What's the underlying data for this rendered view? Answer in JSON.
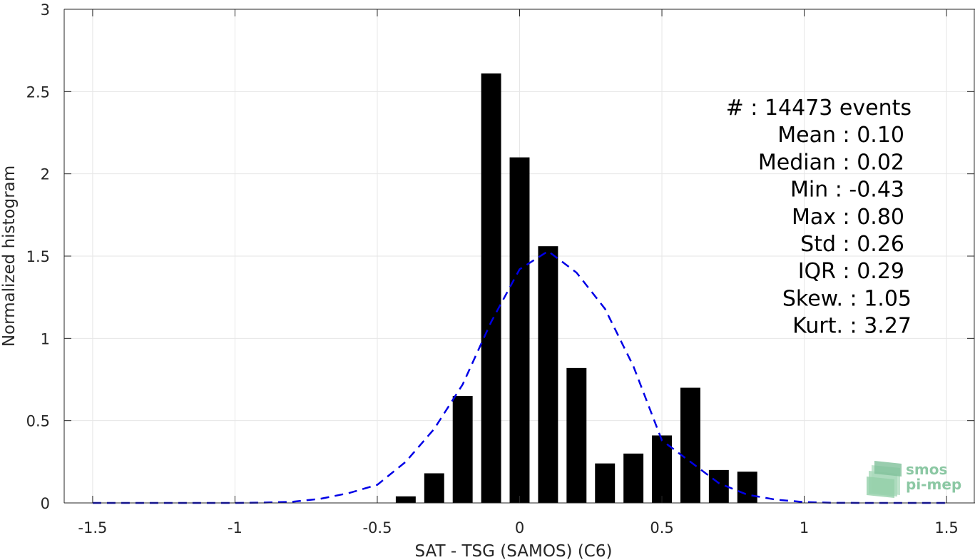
{
  "chart_data": {
    "type": "bar",
    "xlabel": "SAT - TSG (SAMOS) (C6)",
    "ylabel": "Normalized histogram",
    "xlim": [
      -1.6,
      1.6
    ],
    "ylim": [
      0,
      3
    ],
    "xticks": [
      -1.5,
      -1,
      -0.5,
      0,
      0.5,
      1,
      1.5
    ],
    "xtick_labels": [
      "-1.5",
      "-1",
      "-0.5",
      "0",
      "0.5",
      "1",
      "1.5"
    ],
    "yticks": [
      0,
      0.5,
      1,
      1.5,
      2,
      2.5,
      3
    ],
    "ytick_labels": [
      "0",
      "0.5",
      "1",
      "1.5",
      "2",
      "2.5",
      "3"
    ],
    "grid": true,
    "bar_color": "#000000",
    "bars": {
      "x": [
        -0.4,
        -0.3,
        -0.2,
        -0.1,
        0.0,
        0.1,
        0.2,
        0.3,
        0.4,
        0.5,
        0.6,
        0.7,
        0.8
      ],
      "values": [
        0.04,
        0.18,
        0.65,
        2.61,
        2.1,
        1.56,
        0.82,
        0.24,
        0.3,
        0.41,
        0.7,
        0.2,
        0.19
      ]
    },
    "fit_curve": {
      "style": "dashed",
      "color": "#0000e6",
      "x": [
        -1.5,
        -1.4,
        -1.3,
        -1.2,
        -1.1,
        -1.0,
        -0.9,
        -0.8,
        -0.7,
        -0.6,
        -0.5,
        -0.4,
        -0.3,
        -0.2,
        -0.1,
        0.0,
        0.1,
        0.2,
        0.3,
        0.4,
        0.5,
        0.6,
        0.7,
        0.8,
        0.9,
        1.0,
        1.1,
        1.2,
        1.3,
        1.4,
        1.5
      ],
      "y": [
        0,
        0,
        0,
        0,
        0,
        0,
        0.002,
        0.007,
        0.025,
        0.06,
        0.11,
        0.25,
        0.45,
        0.72,
        1.1,
        1.42,
        1.53,
        1.4,
        1.18,
        0.83,
        0.38,
        0.25,
        0.12,
        0.05,
        0.02,
        0.005,
        0.001,
        0,
        0,
        0,
        0
      ]
    },
    "annotations": [
      {
        "label": "#  ",
        "value": ": 14473 events"
      },
      {
        "label": "Mean ",
        "value": ": 0.10"
      },
      {
        "label": "Median ",
        "value": ": 0.02"
      },
      {
        "label": "Min ",
        "value": ": -0.43"
      },
      {
        "label": "Max ",
        "value": ": 0.80"
      },
      {
        "label": "Std ",
        "value": ": 0.26"
      },
      {
        "label": "IQR ",
        "value": ": 0.29"
      },
      {
        "label": "Skew. ",
        "value": ": 1.05"
      },
      {
        "label": "Kurt. ",
        "value": ": 3.27"
      }
    ],
    "logo": {
      "line1": "smos",
      "line2": "pi-mep"
    }
  }
}
